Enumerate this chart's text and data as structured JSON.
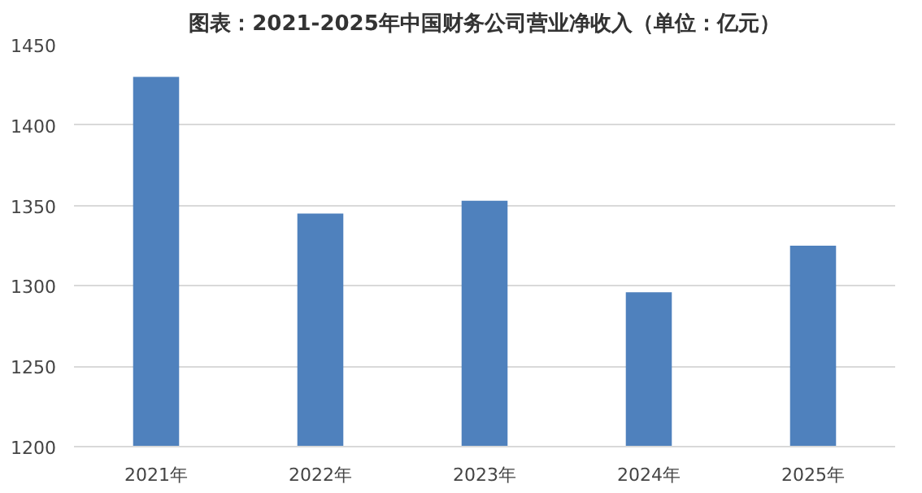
{
  "chart_data": {
    "type": "bar",
    "title": "图表：2021-2025年中国财务公司营业净收入（单位：亿元）",
    "categories": [
      "2021年",
      "2022年",
      "2023年",
      "2024年",
      "2025年"
    ],
    "values": [
      1430,
      1345,
      1353,
      1296,
      1325
    ],
    "color": "#4f81bd",
    "ylim": [
      1200,
      1450
    ],
    "yticks": [
      1200,
      1250,
      1300,
      1350,
      1400,
      1450
    ],
    "grid": "y"
  }
}
